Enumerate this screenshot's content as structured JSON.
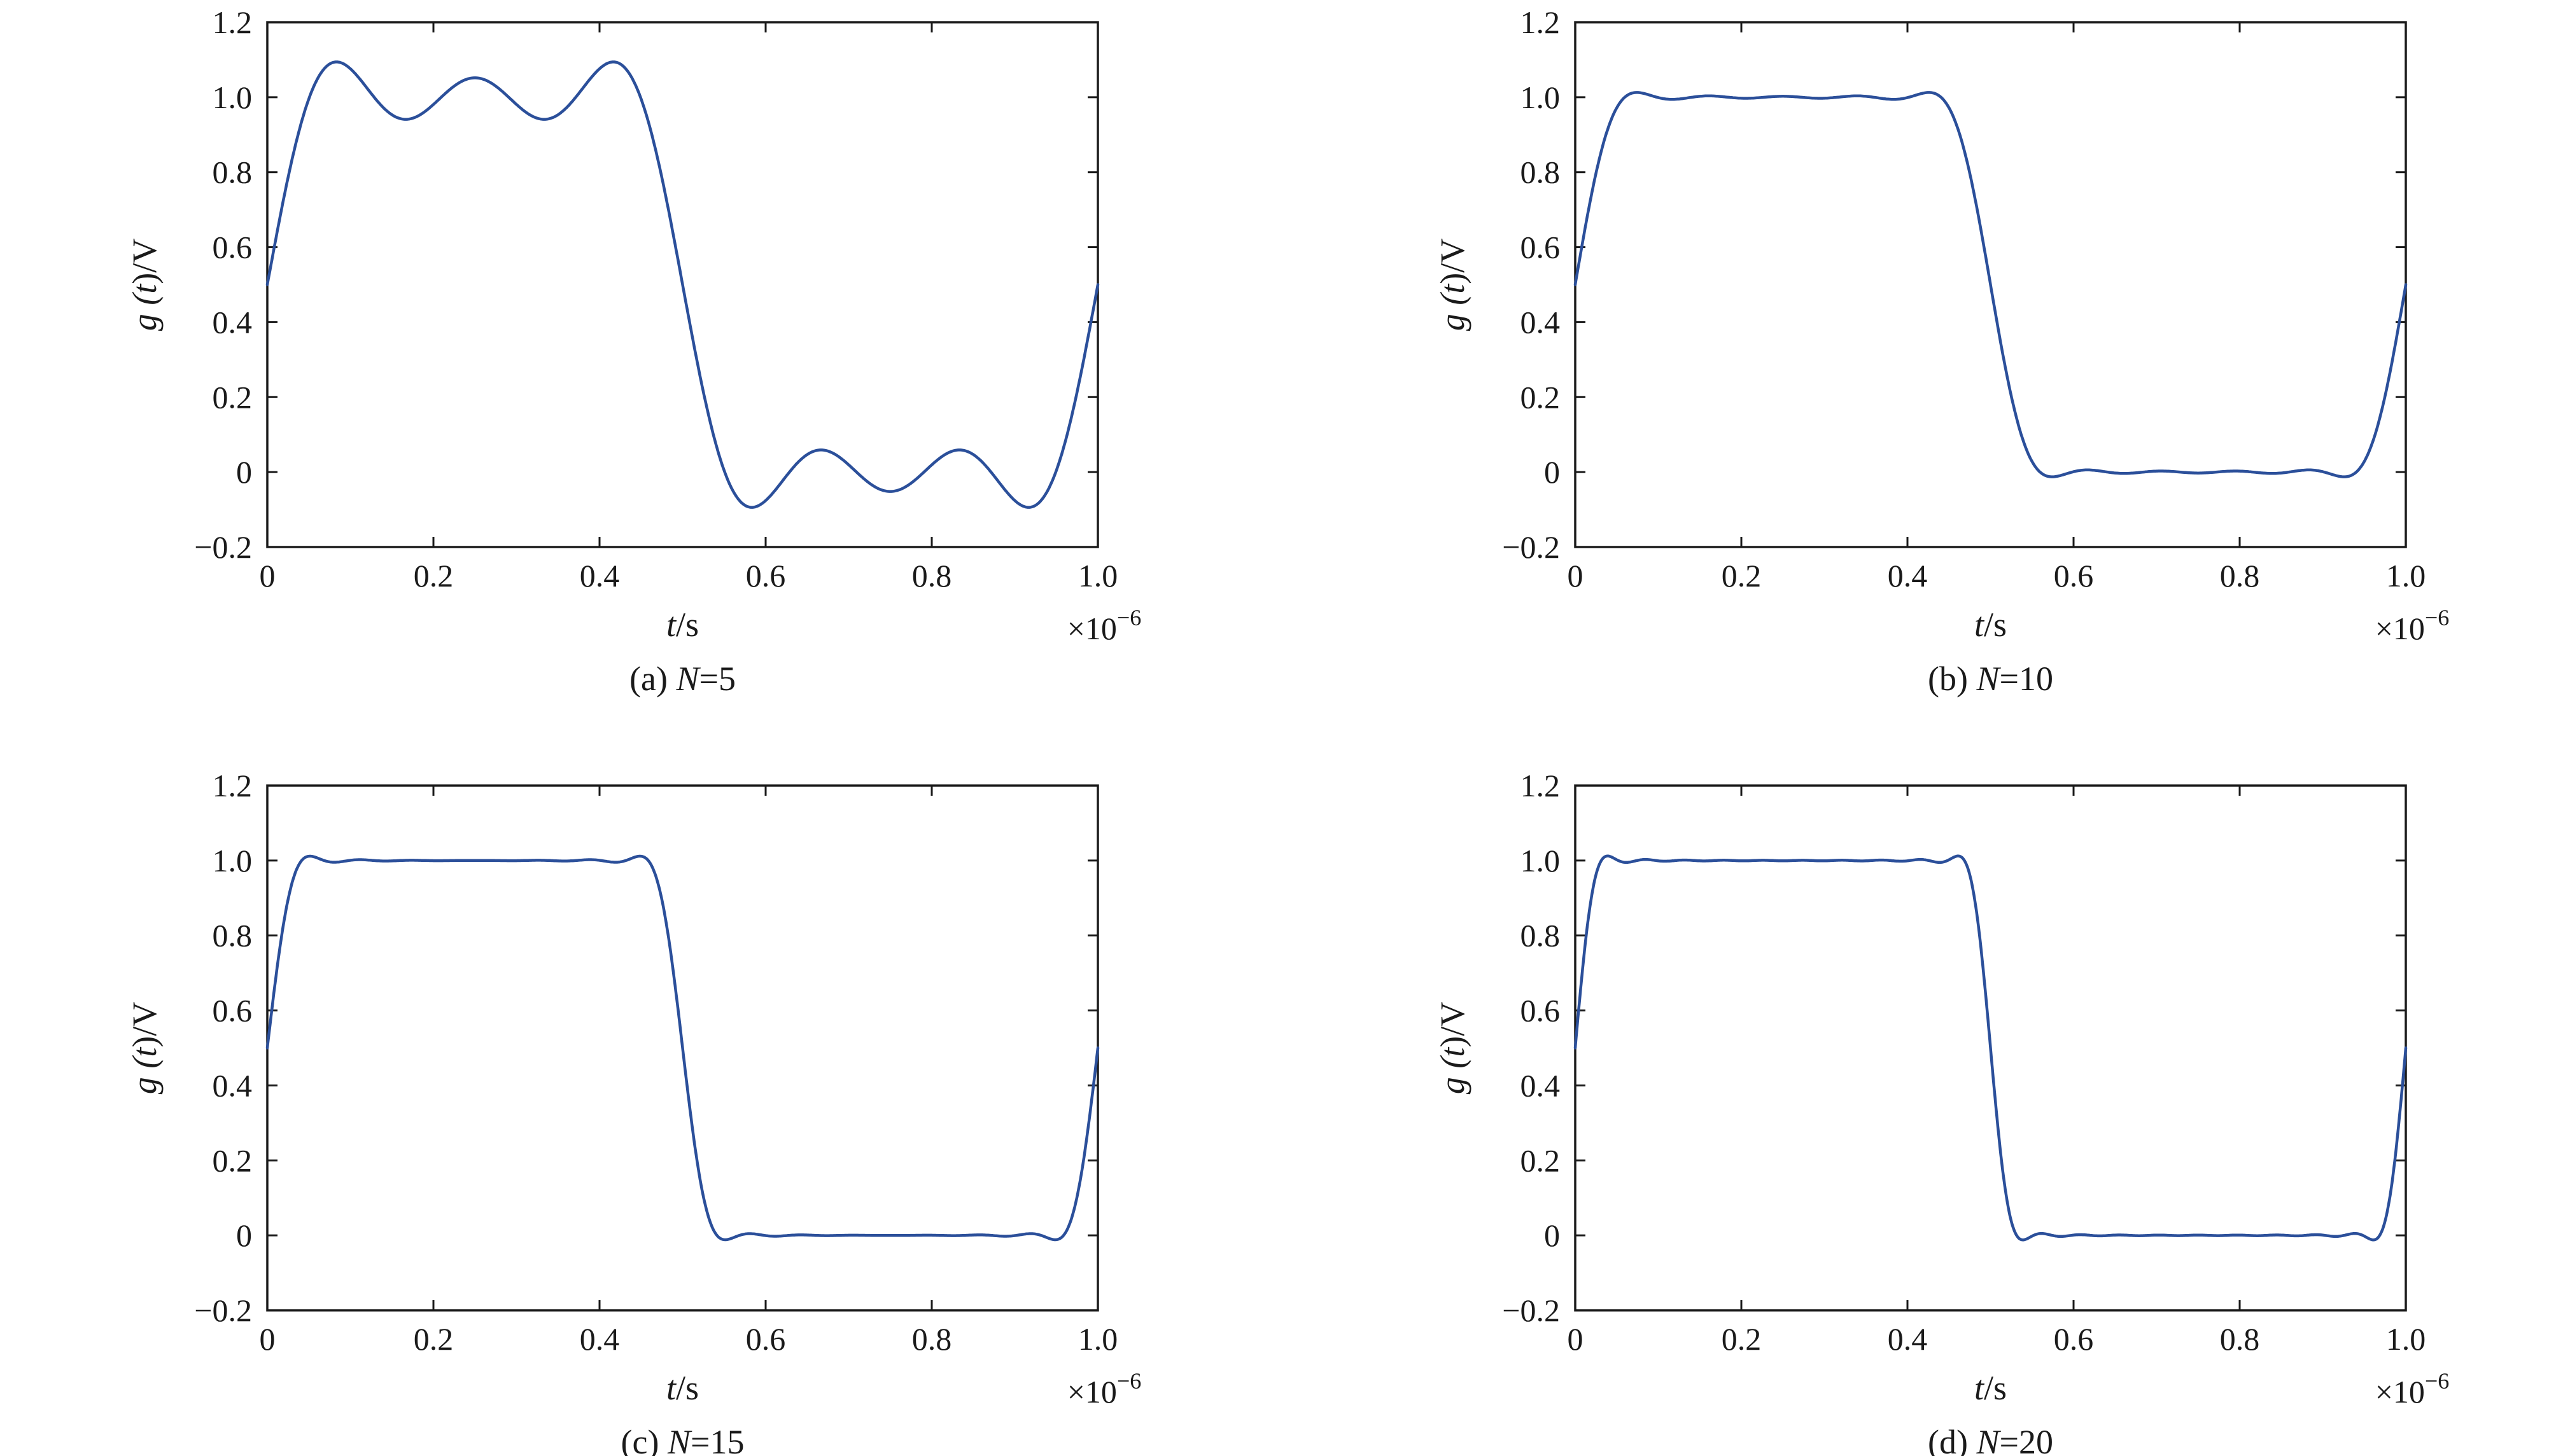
{
  "colors": {
    "line": "#2b4f9a",
    "axis": "#1a1a1a"
  },
  "chart_data": [
    {
      "id": "a",
      "type": "line",
      "caption": {
        "prefix": "(a) ",
        "var": "N",
        "suffix": "=5"
      },
      "xlabel": {
        "var": "t",
        "unit": "/s"
      },
      "ylabel": {
        "pre": "g (",
        "var": "t",
        "post": ")/V"
      },
      "x_multiplier": {
        "base": "×10",
        "exp": "−6"
      },
      "xlim": [
        0,
        1.0
      ],
      "ylim": [
        -0.2,
        1.2
      ],
      "xticks": [
        0,
        0.2,
        0.4,
        0.6,
        0.8,
        1.0
      ],
      "xtick_labels": [
        "0",
        "0.2",
        "0.4",
        "0.6",
        "0.8",
        "1.0"
      ],
      "yticks": [
        -0.2,
        0,
        0.2,
        0.4,
        0.6,
        0.8,
        1.0,
        1.2
      ],
      "ytick_labels": [
        "−0.2",
        "0",
        "0.2",
        "0.4",
        "0.6",
        "0.8",
        "1.0",
        "1.2"
      ],
      "grid": false,
      "series": [
        {
          "harmonics": 5,
          "pulse_width": 0.5
        }
      ]
    },
    {
      "id": "b",
      "type": "line",
      "caption": {
        "prefix": "(b) ",
        "var": "N",
        "suffix": "=10"
      },
      "xlabel": {
        "var": "t",
        "unit": "/s"
      },
      "ylabel": {
        "pre": "g (",
        "var": "t",
        "post": ")/V"
      },
      "x_multiplier": {
        "base": "×10",
        "exp": "−6"
      },
      "xlim": [
        0,
        1.0
      ],
      "ylim": [
        -0.2,
        1.2
      ],
      "xticks": [
        0,
        0.2,
        0.4,
        0.6,
        0.8,
        1.0
      ],
      "xtick_labels": [
        "0",
        "0.2",
        "0.4",
        "0.6",
        "0.8",
        "1.0"
      ],
      "yticks": [
        -0.2,
        0,
        0.2,
        0.4,
        0.6,
        0.8,
        1.0,
        1.2
      ],
      "ytick_labels": [
        "−0.2",
        "0",
        "0.2",
        "0.4",
        "0.6",
        "0.8",
        "1.0",
        "1.2"
      ],
      "grid": false,
      "series": [
        {
          "harmonics": 10,
          "pulse_width": 0.5
        }
      ]
    },
    {
      "id": "c",
      "type": "line",
      "caption": {
        "prefix": "(c) ",
        "var": "N",
        "suffix": "=15"
      },
      "xlabel": {
        "var": "t",
        "unit": "/s"
      },
      "ylabel": {
        "pre": "g (",
        "var": "t",
        "post": ")/V"
      },
      "x_multiplier": {
        "base": "×10",
        "exp": "−6"
      },
      "xlim": [
        0,
        1.0
      ],
      "ylim": [
        -0.2,
        1.2
      ],
      "xticks": [
        0,
        0.2,
        0.4,
        0.6,
        0.8,
        1.0
      ],
      "xtick_labels": [
        "0",
        "0.2",
        "0.4",
        "0.6",
        "0.8",
        "1.0"
      ],
      "yticks": [
        -0.2,
        0,
        0.2,
        0.4,
        0.6,
        0.8,
        1.0,
        1.2
      ],
      "ytick_labels": [
        "−0.2",
        "0",
        "0.2",
        "0.4",
        "0.6",
        "0.8",
        "1.0",
        "1.2"
      ],
      "grid": false,
      "series": [
        {
          "harmonics": 15,
          "pulse_width": 0.5
        }
      ]
    },
    {
      "id": "d",
      "type": "line",
      "caption": {
        "prefix": "(d) ",
        "var": "N",
        "suffix": "=20"
      },
      "xlabel": {
        "var": "t",
        "unit": "/s"
      },
      "ylabel": {
        "pre": "g (",
        "var": "t",
        "post": ")/V"
      },
      "x_multiplier": {
        "base": "×10",
        "exp": "−6"
      },
      "xlim": [
        0,
        1.0
      ],
      "ylim": [
        -0.2,
        1.2
      ],
      "xticks": [
        0,
        0.2,
        0.4,
        0.6,
        0.8,
        1.0
      ],
      "xtick_labels": [
        "0",
        "0.2",
        "0.4",
        "0.6",
        "0.8",
        "1.0"
      ],
      "yticks": [
        -0.2,
        0,
        0.2,
        0.4,
        0.6,
        0.8,
        1.0,
        1.2
      ],
      "ytick_labels": [
        "−0.2",
        "0",
        "0.2",
        "0.4",
        "0.6",
        "0.8",
        "1.0",
        "1.2"
      ],
      "grid": false,
      "series": [
        {
          "harmonics": 20,
          "pulse_width": 0.5
        }
      ]
    }
  ]
}
